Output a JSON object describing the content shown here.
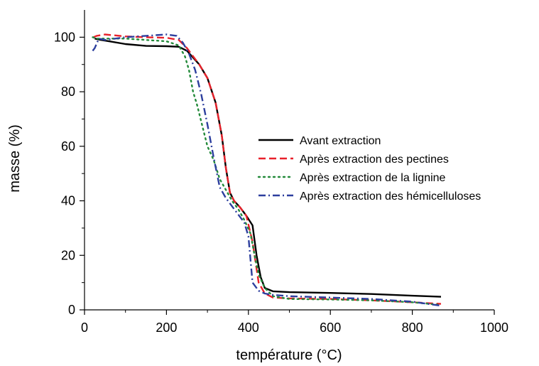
{
  "chart_data": {
    "type": "line",
    "xlabel": "température (°C)",
    "ylabel": "masse (%)",
    "xlim": [
      0,
      1000
    ],
    "ylim": [
      0,
      110
    ],
    "xticks": [
      0,
      200,
      400,
      600,
      800,
      1000
    ],
    "yticks": [
      0,
      20,
      40,
      60,
      80,
      100
    ],
    "grid": false,
    "legend_position": "center-right",
    "series": [
      {
        "name": "Avant extraction",
        "color": "#000000",
        "style": "solid",
        "x": [
          25,
          40,
          60,
          100,
          150,
          200,
          230,
          250,
          265,
          280,
          300,
          320,
          335,
          345,
          355,
          365,
          380,
          395,
          410,
          420,
          430,
          440,
          460,
          500,
          600,
          700,
          800,
          870
        ],
        "y": [
          99.5,
          99,
          98.5,
          97.5,
          96.8,
          96.7,
          96.5,
          95,
          92.5,
          90,
          85,
          76,
          64,
          52,
          43,
          40,
          37.5,
          34.5,
          31,
          20,
          12,
          8,
          6.8,
          6.5,
          6.2,
          5.8,
          5.2,
          4.8
        ]
      },
      {
        "name": "Après extraction des pectines",
        "color": "#e8212a",
        "style": "dashed",
        "x": [
          22,
          30,
          50,
          100,
          150,
          200,
          230,
          250,
          265,
          280,
          300,
          320,
          335,
          345,
          355,
          365,
          380,
          395,
          410,
          425,
          440,
          460,
          500,
          600,
          700,
          800,
          870
        ],
        "y": [
          100,
          100.5,
          101,
          100.3,
          100,
          99.8,
          99,
          96,
          93,
          90,
          85,
          76,
          64,
          52,
          43,
          40,
          37.5,
          34.5,
          25,
          10,
          6,
          4.5,
          4.2,
          4,
          3.5,
          2.8,
          2.2
        ]
      },
      {
        "name": "Après extraction de la lignine",
        "color": "#238a3a",
        "style": "dotted",
        "x": [
          20,
          30,
          50,
          100,
          150,
          200,
          230,
          245,
          255,
          265,
          275,
          290,
          300,
          315,
          330,
          345,
          360,
          375,
          390,
          405,
          415,
          425,
          440,
          460,
          500,
          600,
          700,
          800,
          870
        ],
        "y": [
          100,
          99.5,
          99.5,
          99.5,
          99,
          98.5,
          97,
          93,
          88,
          80,
          75,
          66,
          60,
          55,
          48,
          44,
          40,
          37,
          33,
          28,
          20,
          13,
          8,
          5,
          4,
          3.8,
          3.5,
          2.8,
          1.8
        ]
      },
      {
        "name": "Après extraction des hémicelluloses",
        "color": "#2d3f9e",
        "style": "dashdot",
        "x": [
          20,
          25,
          35,
          50,
          100,
          150,
          200,
          225,
          240,
          255,
          270,
          285,
          300,
          315,
          330,
          345,
          360,
          375,
          390,
          400,
          410,
          425,
          440,
          460,
          500,
          600,
          700,
          800,
          870
        ],
        "y": [
          95,
          96,
          99.5,
          99,
          100,
          100.5,
          101,
          100.5,
          98,
          94,
          88,
          79,
          68,
          56,
          45,
          41,
          38,
          35,
          32,
          27,
          10,
          7,
          6,
          5.5,
          5,
          4.5,
          4,
          3,
          1.5
        ]
      }
    ]
  }
}
